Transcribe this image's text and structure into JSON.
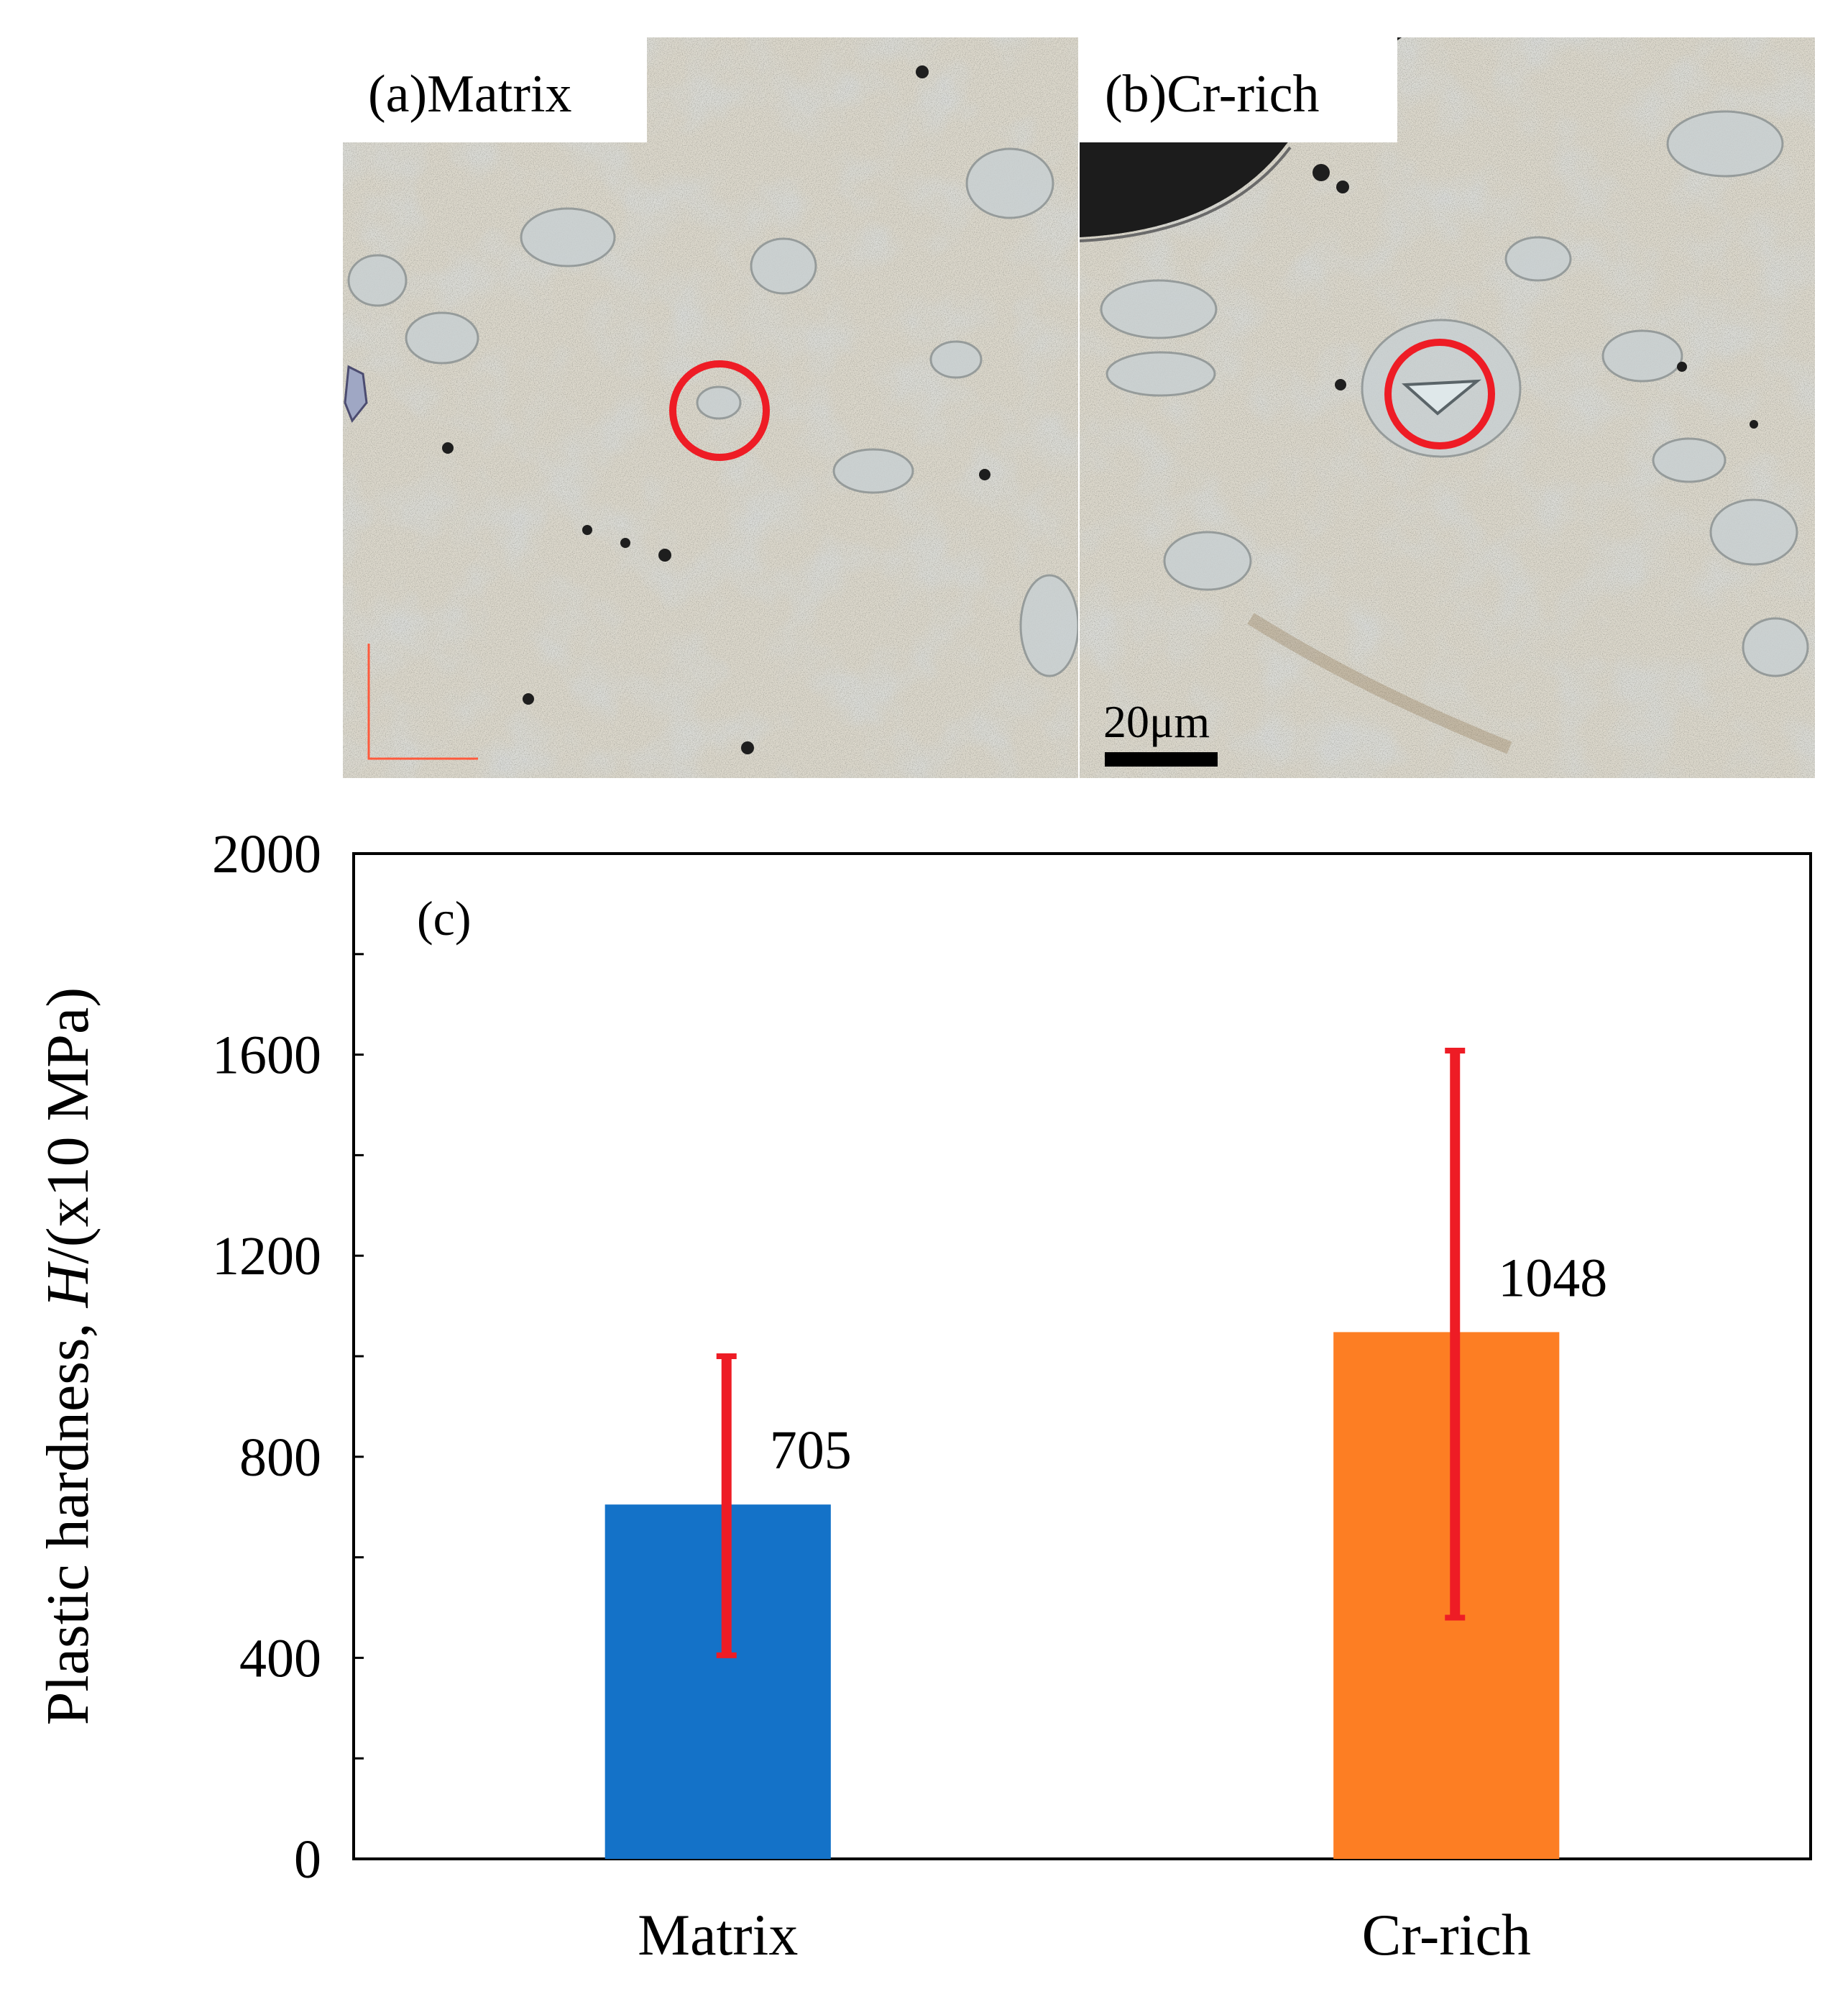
{
  "panels": {
    "a": {
      "label": "(a)Matrix"
    },
    "b": {
      "label": "(b)Cr-rich",
      "scale_bar": "20μm"
    }
  },
  "chart_data": {
    "type": "bar",
    "panel_label": "(c)",
    "categories": [
      "Matrix",
      "Cr-rich"
    ],
    "values": [
      705,
      1048
    ],
    "error_low": [
      405,
      480
    ],
    "error_high": [
      1000,
      1608
    ],
    "data_labels": [
      "705",
      "1048"
    ],
    "ylabel_prefix": "Plastic hardness, ",
    "ylabel_symbol": "H",
    "ylabel_suffix": "/(x10 MPa)",
    "ylim": [
      0,
      2000
    ],
    "yticks": [
      0,
      400,
      800,
      1200,
      1600,
      2000
    ],
    "bar_colors": [
      "#1472c8",
      "#fd7e23"
    ],
    "error_color": "#ee1c25",
    "grid": false,
    "legend": "none"
  }
}
